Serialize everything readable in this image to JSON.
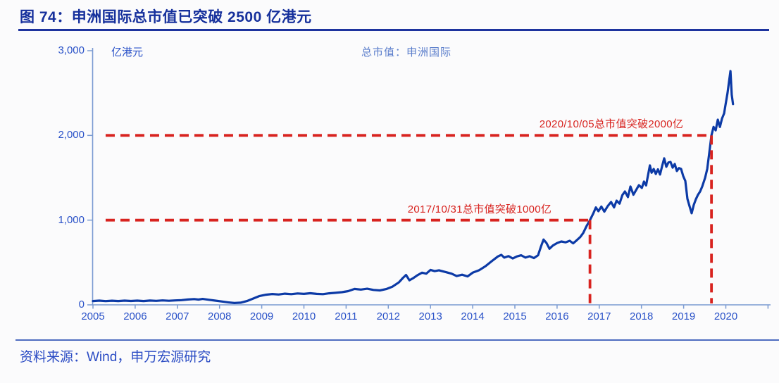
{
  "page": {
    "title": "图 74：申洲国际总市值已突破 2500 亿港元"
  },
  "footer": {
    "source": "资料来源：Wind，申万宏源研究"
  },
  "colors": {
    "title_text": "#16309c",
    "axis_text": "#2a52c8",
    "axis_line": "#7b9bd2",
    "series_line": "#0c3aa6",
    "annotation_red": "#d8231f",
    "legend_text": "#5b7ecb",
    "footer_text": "#2b4cc4"
  },
  "chart_data": {
    "type": "line",
    "legend": "总市值：申洲国际",
    "unit": "亿港元",
    "xlim": [
      2005,
      2021.1
    ],
    "ylim": [
      0,
      3000
    ],
    "grid": false,
    "x_ticks": [
      "2005",
      "2006",
      "2007",
      "2008",
      "2009",
      "2010",
      "2011",
      "2012",
      "2013",
      "2014",
      "2015",
      "2016",
      "2017",
      "2018",
      "2019",
      "2020"
    ],
    "y_ticks": [
      {
        "label": "0",
        "value": 0
      },
      {
        "label": "1,000",
        "value": 1000
      },
      {
        "label": "2,000",
        "value": 2000
      },
      {
        "label": "3,000",
        "value": 3000
      }
    ],
    "annotations": [
      {
        "text": "2017/10/31总市值突破1000亿",
        "level": 1000,
        "vline_year": 2016.78,
        "hline_from_year": 2005.3
      },
      {
        "text": "2020/10/05总市值突破2000亿",
        "level": 2000,
        "vline_year": 2019.66,
        "hline_from_year": 2005.3
      }
    ],
    "series": [
      {
        "name": "总市值：申洲国际",
        "color": "#0c3aa6",
        "points": [
          [
            2005.0,
            45
          ],
          [
            2005.15,
            50
          ],
          [
            2005.3,
            44
          ],
          [
            2005.45,
            49
          ],
          [
            2005.6,
            45
          ],
          [
            2005.75,
            50
          ],
          [
            2005.9,
            46
          ],
          [
            2006.05,
            50
          ],
          [
            2006.2,
            45
          ],
          [
            2006.35,
            51
          ],
          [
            2006.5,
            47
          ],
          [
            2006.65,
            52
          ],
          [
            2006.8,
            48
          ],
          [
            2006.95,
            52
          ],
          [
            2007.1,
            56
          ],
          [
            2007.25,
            63
          ],
          [
            2007.4,
            68
          ],
          [
            2007.5,
            62
          ],
          [
            2007.6,
            70
          ],
          [
            2007.75,
            60
          ],
          [
            2007.9,
            50
          ],
          [
            2008.05,
            40
          ],
          [
            2008.2,
            30
          ],
          [
            2008.35,
            22
          ],
          [
            2008.5,
            26
          ],
          [
            2008.65,
            45
          ],
          [
            2008.8,
            75
          ],
          [
            2008.95,
            105
          ],
          [
            2009.1,
            120
          ],
          [
            2009.25,
            128
          ],
          [
            2009.4,
            122
          ],
          [
            2009.55,
            132
          ],
          [
            2009.7,
            126
          ],
          [
            2009.85,
            135
          ],
          [
            2010.0,
            130
          ],
          [
            2010.15,
            137
          ],
          [
            2010.3,
            130
          ],
          [
            2010.45,
            126
          ],
          [
            2010.6,
            136
          ],
          [
            2010.75,
            142
          ],
          [
            2010.9,
            150
          ],
          [
            2011.05,
            162
          ],
          [
            2011.2,
            188
          ],
          [
            2011.35,
            180
          ],
          [
            2011.5,
            190
          ],
          [
            2011.65,
            176
          ],
          [
            2011.8,
            170
          ],
          [
            2011.95,
            186
          ],
          [
            2012.1,
            215
          ],
          [
            2012.25,
            265
          ],
          [
            2012.35,
            320
          ],
          [
            2012.42,
            352
          ],
          [
            2012.5,
            290
          ],
          [
            2012.6,
            318
          ],
          [
            2012.7,
            352
          ],
          [
            2012.8,
            380
          ],
          [
            2012.9,
            368
          ],
          [
            2013.0,
            412
          ],
          [
            2013.1,
            398
          ],
          [
            2013.2,
            408
          ],
          [
            2013.35,
            388
          ],
          [
            2013.5,
            368
          ],
          [
            2013.62,
            340
          ],
          [
            2013.75,
            356
          ],
          [
            2013.88,
            336
          ],
          [
            2014.0,
            380
          ],
          [
            2014.15,
            408
          ],
          [
            2014.3,
            455
          ],
          [
            2014.45,
            515
          ],
          [
            2014.6,
            572
          ],
          [
            2014.68,
            590
          ],
          [
            2014.75,
            558
          ],
          [
            2014.85,
            575
          ],
          [
            2014.95,
            548
          ],
          [
            2015.05,
            572
          ],
          [
            2015.15,
            585
          ],
          [
            2015.25,
            558
          ],
          [
            2015.35,
            574
          ],
          [
            2015.45,
            552
          ],
          [
            2015.55,
            585
          ],
          [
            2015.62,
            690
          ],
          [
            2015.68,
            770
          ],
          [
            2015.75,
            730
          ],
          [
            2015.82,
            662
          ],
          [
            2015.9,
            700
          ],
          [
            2016.0,
            730
          ],
          [
            2016.1,
            748
          ],
          [
            2016.2,
            738
          ],
          [
            2016.3,
            756
          ],
          [
            2016.38,
            726
          ],
          [
            2016.45,
            755
          ],
          [
            2016.55,
            800
          ],
          [
            2016.62,
            848
          ],
          [
            2016.7,
            930
          ],
          [
            2016.78,
            1000
          ],
          [
            2016.86,
            1080
          ],
          [
            2016.92,
            1150
          ],
          [
            2016.98,
            1105
          ],
          [
            2017.05,
            1160
          ],
          [
            2017.12,
            1100
          ],
          [
            2017.2,
            1165
          ],
          [
            2017.28,
            1214
          ],
          [
            2017.35,
            1150
          ],
          [
            2017.41,
            1230
          ],
          [
            2017.48,
            1195
          ],
          [
            2017.55,
            1297
          ],
          [
            2017.61,
            1338
          ],
          [
            2017.68,
            1272
          ],
          [
            2017.74,
            1397
          ],
          [
            2017.81,
            1300
          ],
          [
            2017.88,
            1360
          ],
          [
            2017.94,
            1413
          ],
          [
            2018.01,
            1380
          ],
          [
            2018.06,
            1455
          ],
          [
            2018.11,
            1410
          ],
          [
            2018.2,
            1646
          ],
          [
            2018.24,
            1560
          ],
          [
            2018.29,
            1604
          ],
          [
            2018.34,
            1545
          ],
          [
            2018.39,
            1600
          ],
          [
            2018.44,
            1538
          ],
          [
            2018.49,
            1640
          ],
          [
            2018.54,
            1729
          ],
          [
            2018.59,
            1630
          ],
          [
            2018.64,
            1680
          ],
          [
            2018.69,
            1687
          ],
          [
            2018.74,
            1620
          ],
          [
            2018.79,
            1663
          ],
          [
            2018.84,
            1580
          ],
          [
            2018.89,
            1615
          ],
          [
            2018.94,
            1604
          ],
          [
            2018.99,
            1520
          ],
          [
            2019.04,
            1463
          ],
          [
            2019.09,
            1250
          ],
          [
            2019.14,
            1164
          ],
          [
            2019.19,
            1081
          ],
          [
            2019.24,
            1180
          ],
          [
            2019.29,
            1247
          ],
          [
            2019.34,
            1300
          ],
          [
            2019.39,
            1338
          ],
          [
            2019.44,
            1397
          ],
          [
            2019.51,
            1500
          ],
          [
            2019.56,
            1604
          ],
          [
            2019.61,
            1800
          ],
          [
            2019.66,
            2000
          ],
          [
            2019.71,
            2100
          ],
          [
            2019.76,
            2060
          ],
          [
            2019.81,
            2186
          ],
          [
            2019.86,
            2100
          ],
          [
            2019.91,
            2200
          ],
          [
            2019.96,
            2260
          ],
          [
            2019.99,
            2353
          ],
          [
            2020.04,
            2500
          ],
          [
            2020.08,
            2650
          ],
          [
            2020.11,
            2760
          ],
          [
            2020.14,
            2480
          ],
          [
            2020.17,
            2370
          ]
        ]
      }
    ]
  }
}
